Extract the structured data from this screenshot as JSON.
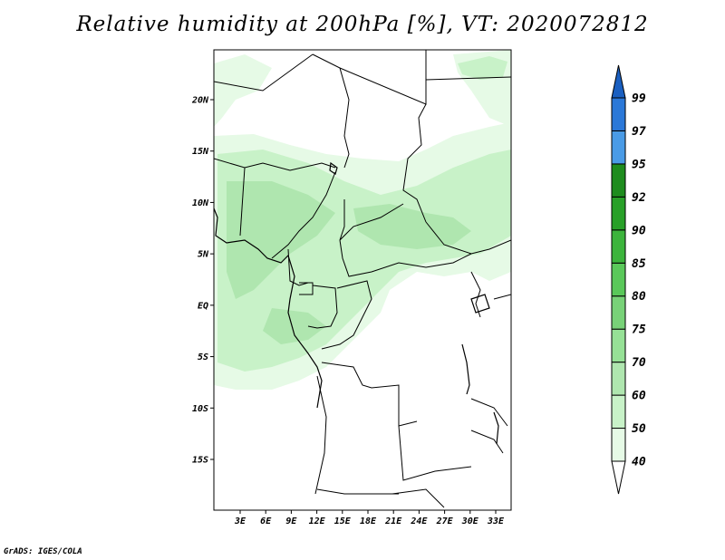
{
  "title": "Relative humidity at 200hPa [%], VT: 2020072812",
  "credit": "GrADS: IGES/COLA",
  "map": {
    "lat_labels": [
      "20N",
      "15N",
      "10N",
      "5N",
      "EQ",
      "5S",
      "10S",
      "15S"
    ],
    "lat_values": [
      20,
      15,
      10,
      5,
      0,
      -5,
      -10,
      -15
    ],
    "lon_labels": [
      "3E",
      "6E",
      "9E",
      "12E",
      "15E",
      "18E",
      "21E",
      "24E",
      "27E",
      "30E",
      "33E"
    ],
    "lon_values": [
      3,
      6,
      9,
      12,
      15,
      18,
      21,
      24,
      27,
      30,
      33
    ],
    "lon_range": [
      0,
      35
    ],
    "lat_range": [
      -20,
      25
    ],
    "field": "Relative humidity",
    "level": "200hPa",
    "units": "%",
    "valid_time": "2020072812"
  },
  "colorbar": {
    "labels": [
      "40",
      "50",
      "60",
      "70",
      "75",
      "80",
      "85",
      "90",
      "92",
      "95",
      "97",
      "99"
    ],
    "colors": [
      "#ffffff",
      "#e6fae6",
      "#c8f2c8",
      "#afe6af",
      "#96e196",
      "#78d278",
      "#5ac85a",
      "#3cb43c",
      "#28a028",
      "#1e8c1e",
      "#4a9be6",
      "#2b78d8",
      "#1a5fc0"
    ]
  }
}
